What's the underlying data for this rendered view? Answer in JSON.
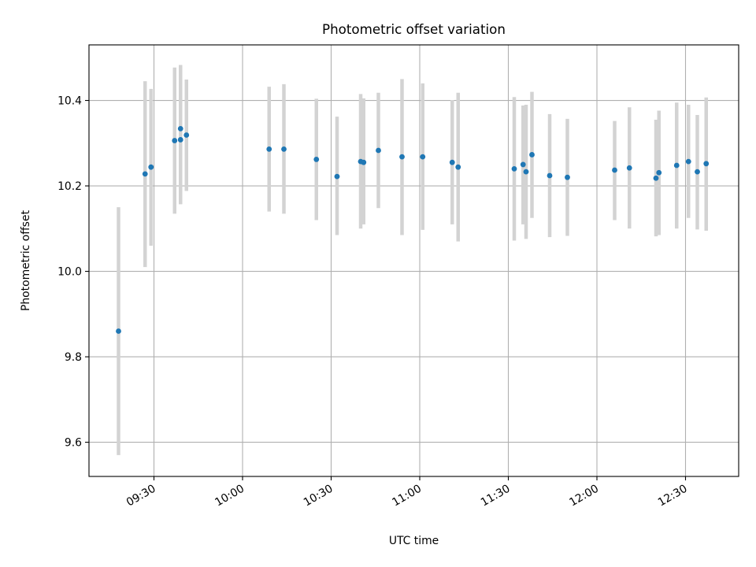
{
  "chart_data": {
    "type": "scatter",
    "title": "Photometric offset variation",
    "xlabel": "UTC time",
    "ylabel": "Photometric offset",
    "grid": true,
    "x_is_time": true,
    "xlim": [
      "09:08",
      "12:48"
    ],
    "ylim": [
      9.52,
      10.53
    ],
    "xticks": [
      "09:30",
      "10:00",
      "10:30",
      "11:00",
      "11:30",
      "12:00",
      "12:30"
    ],
    "yticks": [
      "9.6",
      "9.8",
      "10.0",
      "10.2",
      "10.4"
    ],
    "marker_color": "#1f77b4",
    "errorbar_color": "#d3d3d3",
    "series": [
      {
        "points": [
          {
            "x": "09:18",
            "y": 9.86,
            "lo": 9.57,
            "hi": 10.15
          },
          {
            "x": "09:27",
            "y": 10.228,
            "lo": 10.01,
            "hi": 10.445
          },
          {
            "x": "09:29",
            "y": 10.244,
            "lo": 10.06,
            "hi": 10.427
          },
          {
            "x": "09:37",
            "y": 10.306,
            "lo": 10.135,
            "hi": 10.477
          },
          {
            "x": "09:39",
            "y": 10.308,
            "lo": 10.157,
            "hi": 10.46
          },
          {
            "x": "09:39",
            "y": 10.334,
            "lo": 10.185,
            "hi": 10.483
          },
          {
            "x": "09:41",
            "y": 10.319,
            "lo": 10.188,
            "hi": 10.449
          },
          {
            "x": "10:09",
            "y": 10.286,
            "lo": 10.14,
            "hi": 10.432
          },
          {
            "x": "10:14",
            "y": 10.286,
            "lo": 10.135,
            "hi": 10.438
          },
          {
            "x": "10:25",
            "y": 10.262,
            "lo": 10.12,
            "hi": 10.404
          },
          {
            "x": "10:32",
            "y": 10.222,
            "lo": 10.085,
            "hi": 10.362
          },
          {
            "x": "10:40",
            "y": 10.257,
            "lo": 10.1,
            "hi": 10.415
          },
          {
            "x": "10:41",
            "y": 10.255,
            "lo": 10.11,
            "hi": 10.405
          },
          {
            "x": "10:46",
            "y": 10.283,
            "lo": 10.148,
            "hi": 10.418
          },
          {
            "x": "10:54",
            "y": 10.268,
            "lo": 10.085,
            "hi": 10.45
          },
          {
            "x": "11:01",
            "y": 10.268,
            "lo": 10.097,
            "hi": 10.44
          },
          {
            "x": "11:11",
            "y": 10.255,
            "lo": 10.11,
            "hi": 10.401
          },
          {
            "x": "11:13",
            "y": 10.244,
            "lo": 10.07,
            "hi": 10.418
          },
          {
            "x": "11:32",
            "y": 10.24,
            "lo": 10.072,
            "hi": 10.408
          },
          {
            "x": "11:35",
            "y": 10.25,
            "lo": 10.11,
            "hi": 10.388
          },
          {
            "x": "11:36",
            "y": 10.233,
            "lo": 10.076,
            "hi": 10.39
          },
          {
            "x": "11:38",
            "y": 10.273,
            "lo": 10.125,
            "hi": 10.42
          },
          {
            "x": "11:44",
            "y": 10.224,
            "lo": 10.08,
            "hi": 10.368
          },
          {
            "x": "11:50",
            "y": 10.22,
            "lo": 10.083,
            "hi": 10.357
          },
          {
            "x": "12:06",
            "y": 10.237,
            "lo": 10.12,
            "hi": 10.352
          },
          {
            "x": "12:11",
            "y": 10.242,
            "lo": 10.1,
            "hi": 10.384
          },
          {
            "x": "12:20",
            "y": 10.218,
            "lo": 10.082,
            "hi": 10.355
          },
          {
            "x": "12:21",
            "y": 10.231,
            "lo": 10.085,
            "hi": 10.376
          },
          {
            "x": "12:27",
            "y": 10.248,
            "lo": 10.1,
            "hi": 10.395
          },
          {
            "x": "12:31",
            "y": 10.257,
            "lo": 10.125,
            "hi": 10.39
          },
          {
            "x": "12:34",
            "y": 10.233,
            "lo": 10.098,
            "hi": 10.366
          },
          {
            "x": "12:37",
            "y": 10.252,
            "lo": 10.095,
            "hi": 10.407
          }
        ]
      }
    ]
  }
}
